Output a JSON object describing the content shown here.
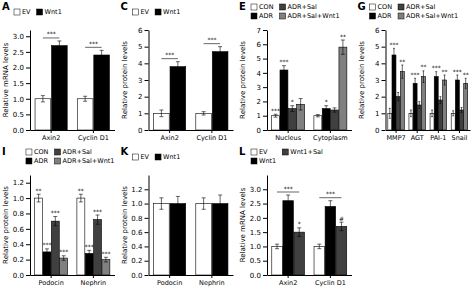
{
  "chart_data": [
    {
      "type": "bar",
      "title": "A",
      "ylabel": "Relative mRNA levels",
      "categories": [
        "Axin2",
        "Cyclin D1"
      ],
      "series": [
        {
          "name": "EV",
          "color": "#FFFFFF",
          "values": [
            1.0,
            1.0
          ],
          "errors": [
            0.1,
            0.08
          ]
        },
        {
          "name": "Wnt1",
          "color": "#000000",
          "values": [
            2.7,
            2.4
          ],
          "errors": [
            0.15,
            0.15
          ]
        }
      ],
      "ylim": [
        0,
        3.2
      ],
      "yticks": [
        {
          "value": 0,
          "label": "0.0"
        },
        0.5,
        {
          "value": 1.0,
          "label": "1.0"
        },
        1.5,
        {
          "value": 2.0,
          "label": "2.0"
        },
        2.5,
        {
          "value": 3.0,
          "label": "3.0"
        }
      ],
      "legend": "upper left",
      "grid": false,
      "annotations": [
        {
          "text": "***",
          "category": "Axin2"
        },
        {
          "text": "***",
          "category": "Cyclin D1"
        }
      ]
    },
    {
      "type": "bar",
      "title": "C",
      "ylabel": "Relative protein levels",
      "categories": [
        "Axin2",
        "Cyclin D1"
      ],
      "series": [
        {
          "name": "EV",
          "color": "#FFFFFF",
          "values": [
            1.0,
            1.0
          ],
          "errors": [
            0.2,
            0.1
          ]
        },
        {
          "name": "Wnt1",
          "color": "#000000",
          "values": [
            3.8,
            4.7
          ],
          "errors": [
            0.3,
            0.3
          ]
        }
      ],
      "ylim": [
        0,
        6
      ],
      "yticks": [
        0,
        1,
        2,
        3,
        4,
        5,
        6
      ],
      "legend": "upper left",
      "grid": false,
      "annotations": [
        {
          "text": "***",
          "category": "Axin2"
        },
        {
          "text": "***",
          "category": "Cyclin D1"
        }
      ]
    },
    {
      "type": "bar",
      "title": "E",
      "ylabel": "Relative protein levels",
      "categories": [
        "Nucleus",
        "Cytoplasm"
      ],
      "series": [
        {
          "name": "CON",
          "color": "#FFFFFF",
          "values": [
            1.0,
            1.0
          ],
          "errors": [
            0.1,
            0.08
          ]
        },
        {
          "name": "ADR",
          "color": "#000000",
          "values": [
            4.2,
            1.5
          ],
          "errors": [
            0.3,
            0.2
          ]
        },
        {
          "name": "ADR+Sal",
          "color": "#404040",
          "values": [
            1.5,
            1.4
          ],
          "errors": [
            0.2,
            0.15
          ]
        },
        {
          "name": "ADR+Sal+Wnt1",
          "color": "#808080",
          "values": [
            1.8,
            5.8
          ],
          "errors": [
            0.4,
            0.5
          ]
        }
      ],
      "ylim": [
        0,
        7
      ],
      "yticks": [
        0,
        1,
        2,
        3,
        4,
        5,
        6,
        7
      ],
      "legend": "upper left",
      "grid": false,
      "annotations": [
        {
          "text": "***",
          "category": "Nucleus",
          "series": "CON"
        },
        {
          "text": "***",
          "category": "Nucleus",
          "series": "ADR"
        },
        {
          "text": "*",
          "category": "Nucleus",
          "series": "ADR+Sal"
        },
        {
          "text": "*",
          "category": "Cytoplasm",
          "series": "ADR"
        },
        {
          "text": "**",
          "category": "Cytoplasm",
          "series": "ADR+Sal+Wnt1"
        }
      ]
    },
    {
      "type": "bar",
      "title": "G",
      "ylabel": "Relative protein levels",
      "categories": [
        "MMP7",
        "AGT",
        "PAI-1",
        "Snail"
      ],
      "series": [
        {
          "name": "CON",
          "color": "#FFFFFF",
          "values": [
            1.0,
            1.0,
            1.0,
            1.0
          ],
          "errors": [
            0.3,
            0.2,
            0.2,
            0.15
          ]
        },
        {
          "name": "ADR",
          "color": "#000000",
          "values": [
            4.5,
            2.8,
            3.2,
            3.0
          ],
          "errors": [
            0.4,
            0.3,
            0.3,
            0.3
          ]
        },
        {
          "name": "ADR+Sal",
          "color": "#404040",
          "values": [
            2.0,
            1.5,
            1.8,
            1.2
          ],
          "errors": [
            0.25,
            0.2,
            0.2,
            0.15
          ]
        },
        {
          "name": "ADR+Sal+Wnt1",
          "color": "#808080",
          "values": [
            3.5,
            3.2,
            3.0,
            2.8
          ],
          "errors": [
            0.4,
            0.35,
            0.3,
            0.3
          ]
        }
      ],
      "ylim": [
        0,
        6
      ],
      "yticks": [
        0,
        1,
        2,
        3,
        4,
        5,
        6
      ],
      "legend": "upper left",
      "grid": false,
      "annotations": [
        {
          "text": "***",
          "category": "MMP7",
          "series": "ADR"
        },
        {
          "text": "**",
          "category": "MMP7",
          "series": "ADR+Sal+Wnt1"
        },
        {
          "text": "***",
          "category": "AGT",
          "series": "ADR"
        },
        {
          "text": "**",
          "category": "AGT",
          "series": "ADR+Sal+Wnt1"
        },
        {
          "text": "***",
          "category": "PAI-1",
          "series": "ADR"
        },
        {
          "text": "**",
          "category": "PAI-1",
          "series": "ADR+Sal+Wnt1"
        },
        {
          "text": "***",
          "category": "Snail",
          "series": "ADR"
        },
        {
          "text": "**",
          "category": "Snail",
          "series": "ADR+Sal+Wnt1"
        }
      ]
    },
    {
      "type": "bar",
      "title": "I",
      "ylabel": "Relative protein levels",
      "categories": [
        "Podocin",
        "Nephrin"
      ],
      "series": [
        {
          "name": "CON",
          "color": "#FFFFFF",
          "values": [
            1.0,
            1.0
          ],
          "errors": [
            0.05,
            0.05
          ]
        },
        {
          "name": "ADR",
          "color": "#000000",
          "values": [
            0.3,
            0.28
          ],
          "errors": [
            0.04,
            0.04
          ]
        },
        {
          "name": "ADR+Sal",
          "color": "#404040",
          "values": [
            0.7,
            0.72
          ],
          "errors": [
            0.06,
            0.06
          ]
        },
        {
          "name": "ADR+Sal+Wnt1",
          "color": "#808080",
          "values": [
            0.22,
            0.2
          ],
          "errors": [
            0.03,
            0.03
          ]
        }
      ],
      "ylim": [
        0,
        1.3
      ],
      "yticks": [
        {
          "value": 0,
          "label": "0.0"
        },
        0.2,
        0.4,
        0.6,
        0.8,
        {
          "value": 1.0,
          "label": "1.0"
        },
        1.2
      ],
      "legend": "upper right",
      "grid": false,
      "annotations": [
        {
          "text": "**",
          "category": "Podocin",
          "series": "CON"
        },
        {
          "text": "***",
          "category": "Podocin",
          "series": "ADR"
        },
        {
          "text": "***",
          "category": "Podocin",
          "series": "ADR+Sal"
        },
        {
          "text": "***",
          "category": "Podocin",
          "series": "ADR+Sal+Wnt1"
        },
        {
          "text": "**",
          "category": "Nephrin",
          "series": "CON"
        },
        {
          "text": "***",
          "category": "Nephrin",
          "series": "ADR"
        },
        {
          "text": "***",
          "category": "Nephrin",
          "series": "ADR+Sal"
        },
        {
          "text": "***",
          "category": "Nephrin",
          "series": "ADR+Sal+Wnt1"
        }
      ]
    },
    {
      "type": "bar",
      "title": "K",
      "ylabel": "Relative protein levels",
      "categories": [
        "Podocin",
        "Nephrin"
      ],
      "series": [
        {
          "name": "EV",
          "color": "#FFFFFF",
          "values": [
            1.0,
            1.0
          ],
          "errors": [
            0.08,
            0.08
          ]
        },
        {
          "name": "Wnt1",
          "color": "#000000",
          "values": [
            1.0,
            1.0
          ],
          "errors": [
            0.1,
            0.12
          ]
        }
      ],
      "ylim": [
        0,
        1.4
      ],
      "yticks": [
        {
          "value": 0,
          "label": "0.0"
        },
        0.2,
        0.4,
        0.6,
        0.8,
        {
          "value": 1.0,
          "label": "1.0"
        },
        1.2
      ],
      "legend": "upper left",
      "grid": false
    },
    {
      "type": "bar",
      "title": "L",
      "ylabel": "Relative mRNA levels",
      "categories": [
        "Axin2",
        "Cyclin D1"
      ],
      "series": [
        {
          "name": "EV",
          "color": "#FFFFFF",
          "values": [
            1.0,
            1.0
          ],
          "errors": [
            0.08,
            0.08
          ]
        },
        {
          "name": "Wnt1",
          "color": "#000000",
          "values": [
            2.6,
            2.4
          ],
          "errors": [
            0.2,
            0.2
          ]
        },
        {
          "name": "Wnt1+Sal",
          "color": "#404040",
          "values": [
            1.5,
            1.7
          ],
          "errors": [
            0.15,
            0.15
          ]
        }
      ],
      "ylim": [
        0,
        3.5
      ],
      "yticks": [
        {
          "value": 0,
          "label": "0.0"
        },
        0.5,
        {
          "value": 1.0,
          "label": "1.0"
        },
        1.5,
        {
          "value": 2.0,
          "label": "2.0"
        },
        2.5,
        {
          "value": 3.0,
          "label": "3.0"
        }
      ],
      "legend": "upper left",
      "grid": false,
      "annotations": [
        {
          "text": "***",
          "category": "Axin2"
        },
        {
          "text": "*",
          "category": "Axin2",
          "series": "Wnt1+Sal"
        },
        {
          "text": "***",
          "category": "Cyclin D1"
        },
        {
          "text": "#",
          "category": "Cyclin D1",
          "series": "Wnt1+Sal"
        }
      ]
    }
  ]
}
